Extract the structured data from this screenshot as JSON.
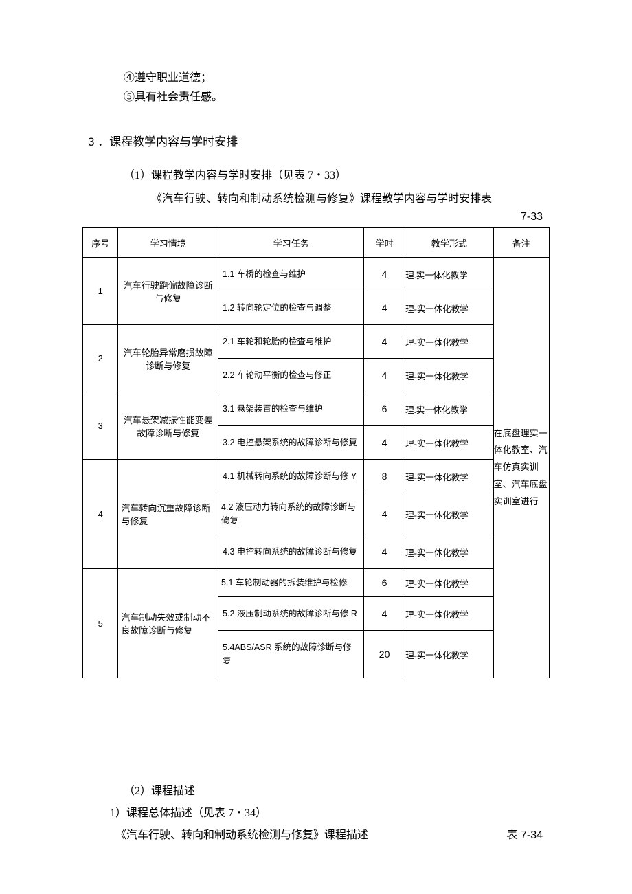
{
  "intro": {
    "line4": "④遵守职业道德；",
    "line5": "⑤具有社会责任感。"
  },
  "section3": {
    "heading": "3 ．课程教学内容与学时安排",
    "sub1": "（1）课程教学内容与学时安排（见表 7・33）",
    "table_title": "《汽车行驶、转向和制动系统检测与修复》课程教学内容与学时安排表",
    "table_number": "7-33"
  },
  "table": {
    "columns": {
      "seq": "序号",
      "context": "学习情境",
      "task": "学习任务",
      "hours": "学时",
      "form": "教学形式",
      "note": "备注"
    },
    "note_text": "在底盘理实一体化教室、汽车仿真实训室、汽车底盘实训室进行",
    "rows": [
      {
        "seq": "1",
        "context": "汽车行驶跑偏故障诊断与修复",
        "tasks": [
          {
            "task": "1.1 车桥的检查与维护",
            "hours": "4",
            "form": "理.实一体化教学"
          },
          {
            "task": "1.2 转向轮定位的检查与调整",
            "hours": "4",
            "form": "理-实一体化教学"
          }
        ]
      },
      {
        "seq": "2",
        "context": "汽车轮胎异常磨损故障诊断与修复",
        "tasks": [
          {
            "task": "2.1 车轮和轮胎的检查与维护",
            "hours": "4",
            "form": "理-实一体化教学"
          },
          {
            "task": "2.2 车轮动平衡的检查与修正",
            "hours": "4",
            "form": "理-实一体化教学"
          }
        ]
      },
      {
        "seq": "3",
        "context": "汽车悬架减振性能变差故障诊断与修复",
        "tasks": [
          {
            "task": "3.1 悬架装置的检查与维护",
            "hours": "6",
            "form": "理.实一体化教学"
          },
          {
            "task": "3.2 电控悬架系统的故障诊断与修复",
            "hours": "4",
            "form": "理-实一体化教学"
          }
        ]
      },
      {
        "seq": "4",
        "context": "汽车转向沉重故障诊断与修复",
        "tasks": [
          {
            "task": "4.1 机械转向系统的故障诊断与修 Y",
            "hours": "8",
            "form": "理-实一体化教学"
          },
          {
            "task": "4.2 液压动力转向系统的故障诊断与修复",
            "hours": "4",
            "form": "理-实一体化教学"
          },
          {
            "task": "4.3 电控转向系统的故障诊断与修复",
            "hours": "4",
            "form": "理-实一体化教学"
          }
        ]
      },
      {
        "seq": "5",
        "context": "汽车制动失效或制动不良故障诊断与修复",
        "tasks": [
          {
            "task": "5.1 车轮制动器的拆装维护与检修",
            "hours": "6",
            "form": "理-实一体化教学"
          },
          {
            "task": "5.2 液压制动系统的故障诊断与修 R",
            "hours": "4",
            "form": "理-实一体化教学"
          },
          {
            "task": "5.4ABS/ASR 系统的故障诊断与修复",
            "hours": "20",
            "form": "理-实一体化教学"
          }
        ]
      }
    ]
  },
  "footer": {
    "sub2": "（2）课程描述",
    "sub3": "1）课程总体描述（见表 7・34）",
    "desc_title": "《汽车行驶、转向和制动系统检测与修复》课程描述",
    "desc_num": "表 7-34"
  }
}
